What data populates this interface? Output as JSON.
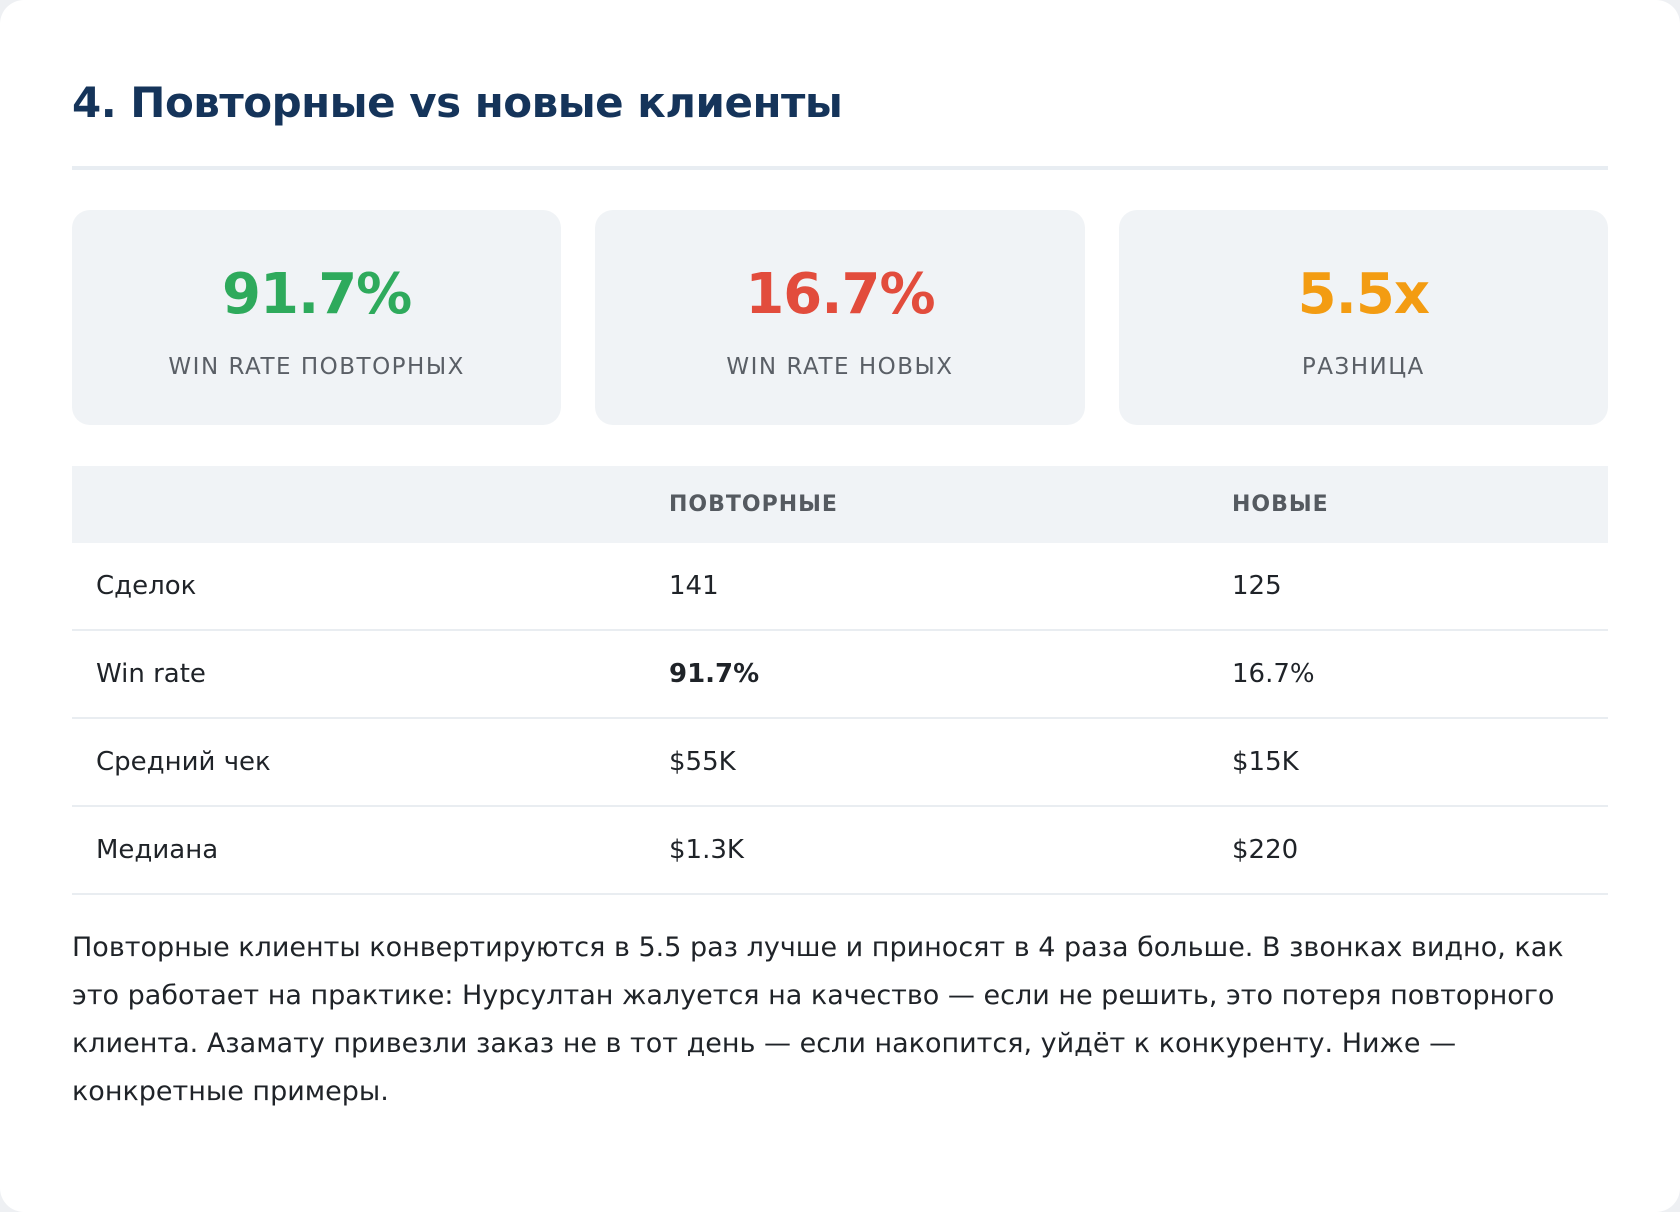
{
  "header": {
    "title": "4. Повторные vs новые клиенты"
  },
  "stats": [
    {
      "value": "91.7%",
      "label": "WIN RATE ПОВТОРНЫХ"
    },
    {
      "value": "16.7%",
      "label": "WIN RATE НОВЫХ"
    },
    {
      "value": "5.5x",
      "label": "РАЗНИЦА"
    }
  ],
  "table": {
    "columns": [
      null,
      "ПОВТОРНЫЕ",
      "НОВЫЕ"
    ],
    "rows": [
      [
        "Сделок",
        "141",
        "125"
      ],
      [
        "Win rate",
        "91.7%",
        "16.7%"
      ],
      [
        "Средний чек",
        "$55K",
        "$15K"
      ],
      [
        "Медиана",
        "$1.3K",
        "$220"
      ]
    ]
  },
  "paragraph": "Повторные клиенты конвертируются в 5.5 раз лучше и приносят в 4 раза больше. В звонках видно, как это работает на практике: Нурсултан жалуется на качество — если не решить, это потеря повторного клиента. Азамату привезли заказ не в тот день — если накопится, уйдёт к конкуренту. Ниже — конкретные примеры."
}
